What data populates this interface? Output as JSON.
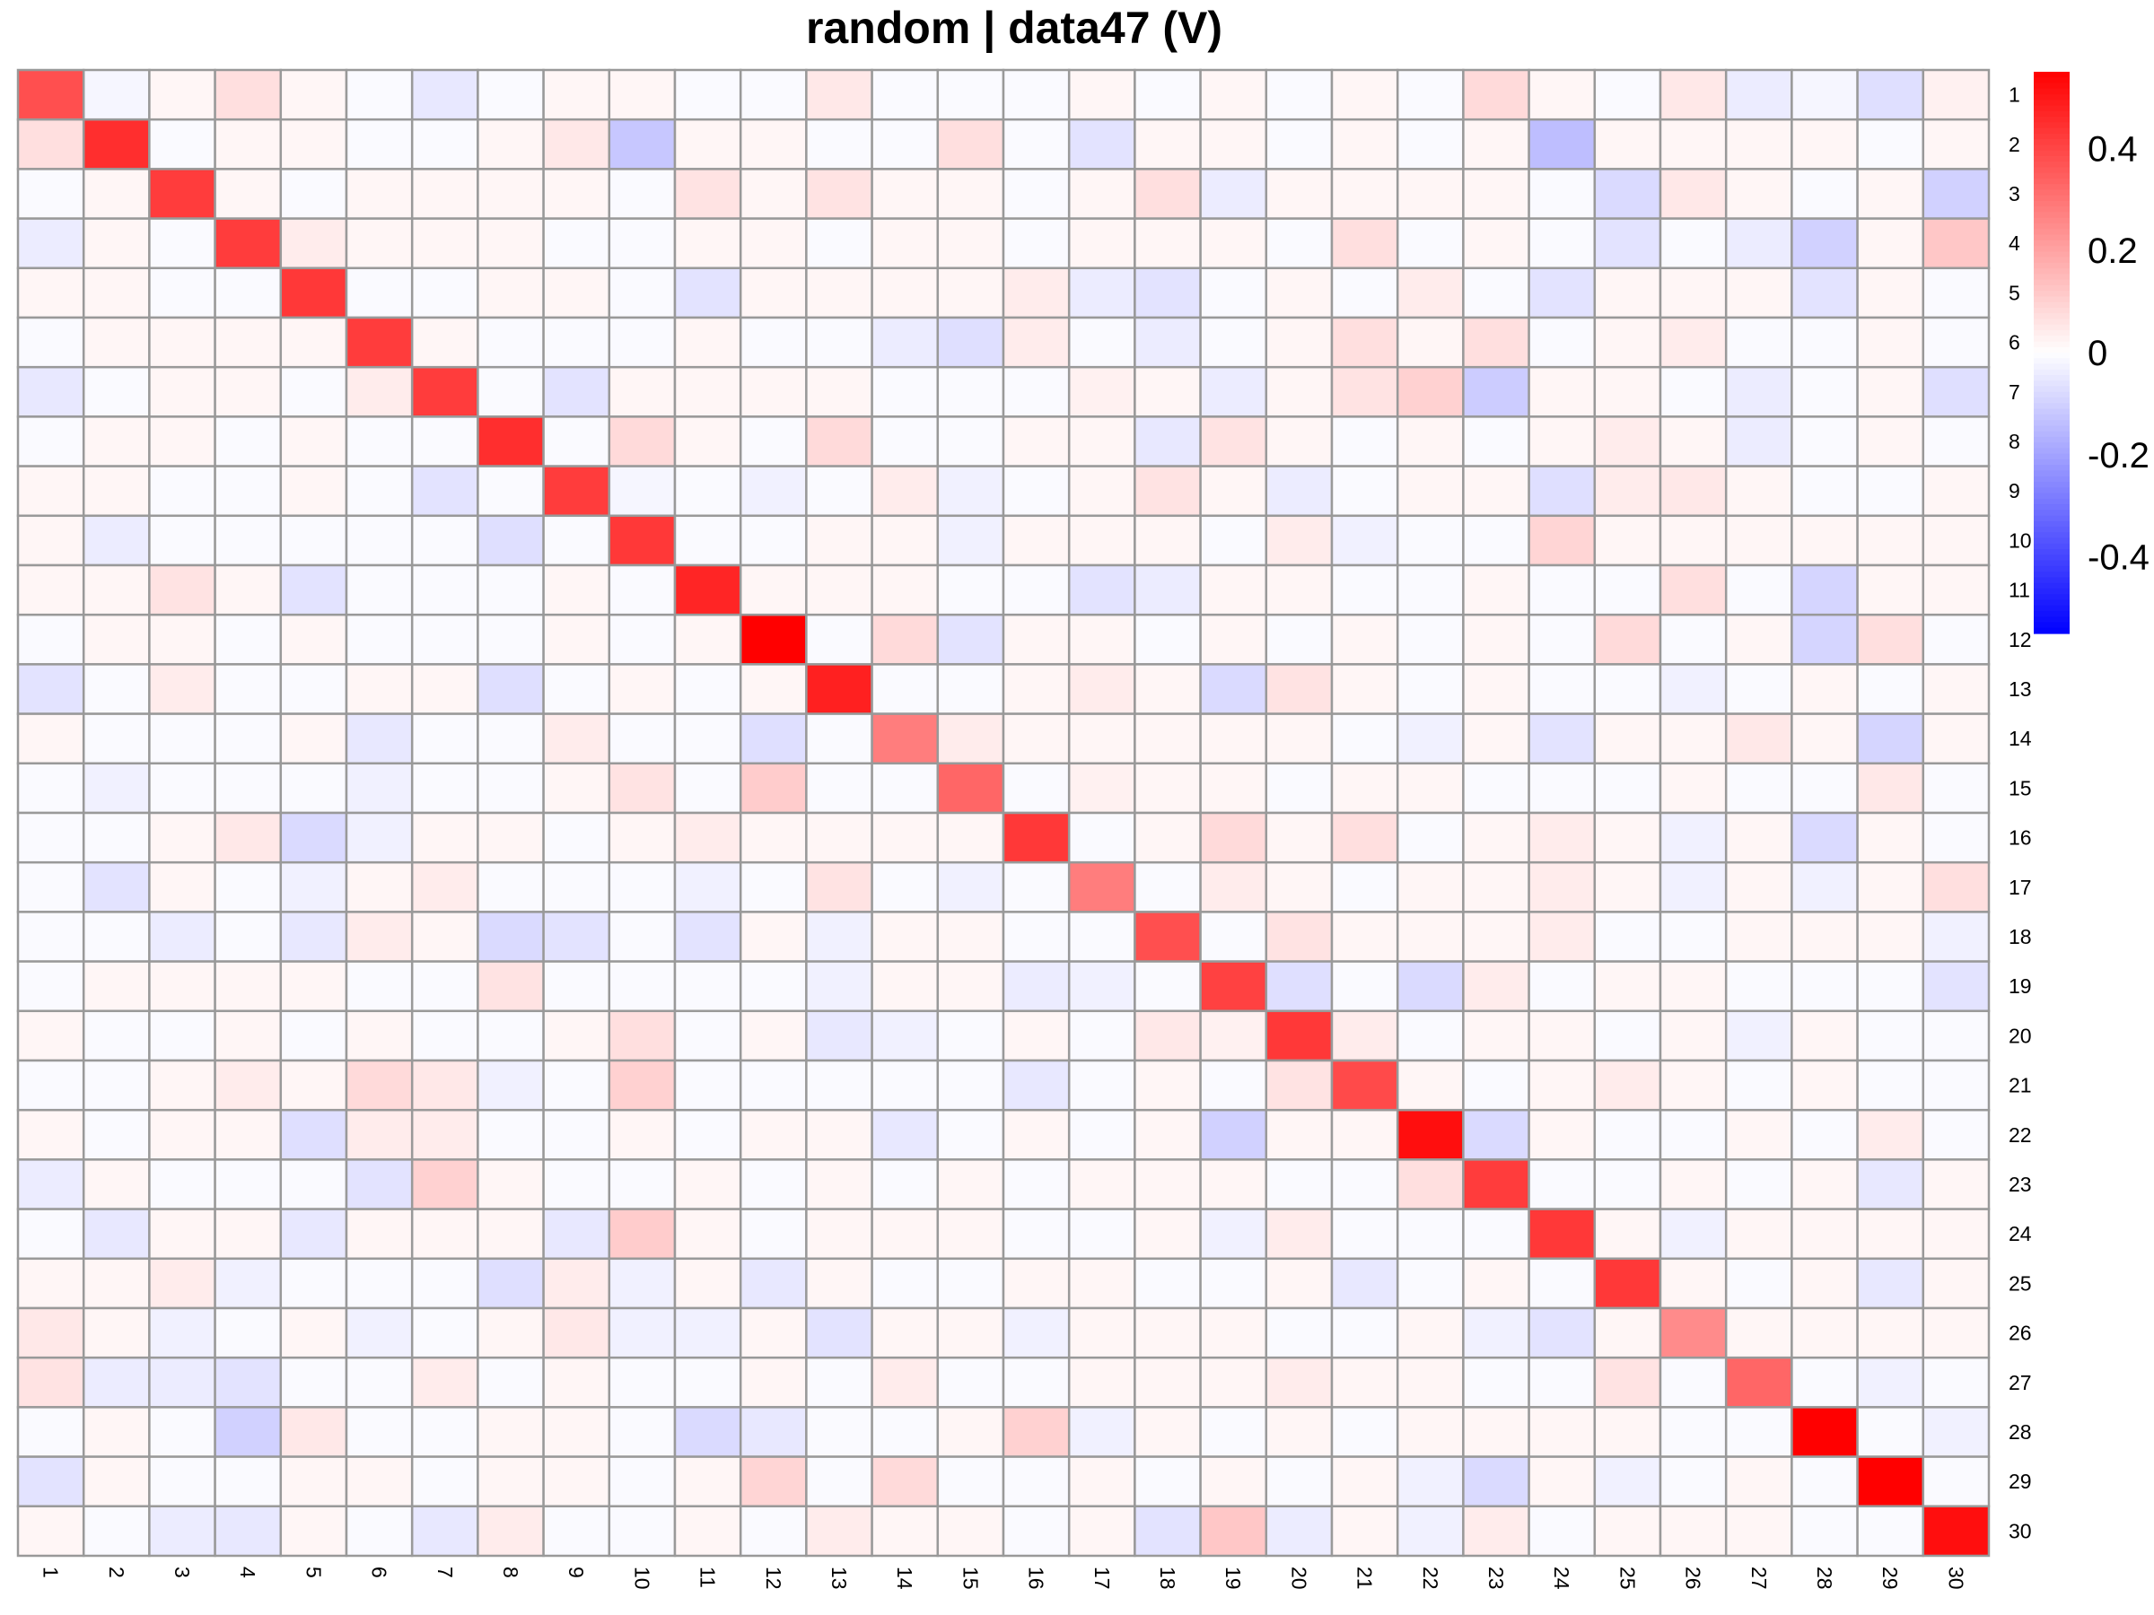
{
  "chart_data": {
    "type": "heatmap",
    "title": "random | data47 (V)",
    "row_labels": [
      "1",
      "2",
      "3",
      "4",
      "5",
      "6",
      "7",
      "8",
      "9",
      "10",
      "11",
      "12",
      "13",
      "14",
      "15",
      "16",
      "17",
      "18",
      "19",
      "20",
      "21",
      "22",
      "23",
      "24",
      "25",
      "26",
      "27",
      "28",
      "29",
      "30"
    ],
    "col_labels": [
      "1",
      "2",
      "3",
      "4",
      "5",
      "6",
      "7",
      "8",
      "9",
      "10",
      "11",
      "12",
      "13",
      "14",
      "15",
      "16",
      "17",
      "18",
      "19",
      "20",
      "21",
      "22",
      "23",
      "24",
      "25",
      "26",
      "27",
      "28",
      "29",
      "30"
    ],
    "color_scale": {
      "min": -0.55,
      "max": 0.55,
      "low_color": "#0000ff",
      "mid_color": "#ffffff",
      "high_color": "#ff0000",
      "ticks": [
        0.4,
        0.2,
        0,
        -0.2,
        -0.4
      ],
      "tick_labels": [
        "0.4",
        "0.2",
        "0",
        "-0.2",
        "-0.4"
      ]
    },
    "grid_color": "#999999",
    "values": [
      [
        0.38,
        -0.02,
        0.02,
        0.07,
        0.02,
        -0.01,
        -0.05,
        -0.01,
        0.02,
        0.02,
        -0.01,
        -0.01,
        0.05,
        -0.01,
        -0.01,
        -0.01,
        0.02,
        -0.01,
        0.02,
        -0.01,
        0.02,
        -0.01,
        0.08,
        0.02,
        -0.01,
        0.05,
        -0.04,
        -0.02,
        -0.07,
        0.03
      ],
      [
        0.07,
        0.45,
        -0.01,
        0.02,
        0.02,
        -0.01,
        -0.01,
        0.02,
        0.05,
        -0.12,
        0.02,
        0.02,
        -0.01,
        -0.01,
        0.07,
        -0.01,
        -0.06,
        0.02,
        0.02,
        -0.01,
        0.02,
        -0.01,
        0.02,
        -0.14,
        0.02,
        0.02,
        0.02,
        0.02,
        -0.01,
        0.02
      ],
      [
        -0.01,
        0.02,
        0.42,
        0.02,
        -0.01,
        0.02,
        0.02,
        0.02,
        0.02,
        -0.01,
        0.06,
        0.02,
        0.06,
        0.02,
        0.02,
        -0.01,
        0.02,
        0.07,
        -0.04,
        0.02,
        0.02,
        0.02,
        0.02,
        -0.01,
        -0.08,
        0.05,
        0.02,
        -0.01,
        0.02,
        -0.1
      ],
      [
        -0.04,
        0.02,
        -0.01,
        0.42,
        0.04,
        0.02,
        0.02,
        0.02,
        -0.01,
        -0.01,
        0.02,
        0.02,
        -0.01,
        0.02,
        0.02,
        -0.01,
        0.02,
        0.02,
        0.02,
        -0.01,
        0.07,
        -0.01,
        0.02,
        -0.01,
        -0.06,
        -0.01,
        -0.04,
        -0.1,
        0.02,
        0.12
      ],
      [
        0.02,
        0.02,
        -0.01,
        -0.01,
        0.43,
        -0.01,
        -0.01,
        0.02,
        0.02,
        -0.01,
        -0.06,
        0.02,
        0.02,
        0.02,
        0.02,
        0.04,
        -0.04,
        -0.06,
        -0.01,
        0.02,
        -0.01,
        0.04,
        -0.01,
        -0.06,
        0.02,
        0.02,
        0.02,
        -0.06,
        0.02,
        -0.01
      ],
      [
        -0.01,
        0.02,
        0.02,
        0.02,
        0.02,
        0.42,
        0.02,
        -0.01,
        -0.01,
        -0.01,
        0.02,
        -0.01,
        -0.01,
        -0.04,
        -0.07,
        0.04,
        -0.01,
        -0.04,
        -0.01,
        0.02,
        0.07,
        0.02,
        0.07,
        -0.01,
        0.02,
        0.04,
        -0.01,
        -0.01,
        0.02,
        -0.01
      ],
      [
        -0.05,
        -0.01,
        0.02,
        0.02,
        -0.01,
        0.04,
        0.42,
        -0.01,
        -0.06,
        0.02,
        0.02,
        0.02,
        0.02,
        -0.01,
        -0.01,
        -0.01,
        0.03,
        0.02,
        -0.04,
        0.02,
        0.06,
        0.1,
        -0.11,
        0.02,
        0.02,
        -0.01,
        -0.04,
        -0.01,
        0.02,
        -0.07
      ],
      [
        -0.01,
        0.02,
        0.02,
        -0.01,
        0.02,
        -0.01,
        -0.01,
        0.45,
        -0.01,
        0.08,
        0.02,
        -0.01,
        0.08,
        -0.01,
        -0.01,
        0.02,
        0.02,
        -0.05,
        0.06,
        0.02,
        -0.01,
        0.02,
        -0.01,
        0.02,
        0.04,
        0.02,
        -0.04,
        -0.01,
        0.02,
        -0.01
      ],
      [
        0.02,
        0.02,
        -0.01,
        -0.01,
        0.02,
        -0.01,
        -0.06,
        -0.01,
        0.42,
        -0.02,
        -0.01,
        -0.03,
        -0.01,
        0.04,
        -0.03,
        -0.01,
        0.02,
        0.06,
        0.02,
        -0.04,
        -0.01,
        0.02,
        0.02,
        -0.07,
        0.04,
        0.05,
        0.02,
        -0.01,
        -0.01,
        0.02
      ],
      [
        0.02,
        -0.04,
        -0.01,
        -0.01,
        -0.01,
        -0.01,
        -0.01,
        -0.07,
        -0.01,
        0.43,
        -0.01,
        -0.01,
        0.02,
        0.02,
        -0.03,
        0.02,
        0.02,
        0.02,
        -0.01,
        0.04,
        -0.03,
        -0.01,
        -0.01,
        0.09,
        0.02,
        0.02,
        0.02,
        0.02,
        0.02,
        0.02
      ],
      [
        0.02,
        0.02,
        0.06,
        0.02,
        -0.06,
        -0.01,
        -0.01,
        -0.01,
        0.02,
        -0.01,
        0.47,
        0.02,
        0.02,
        0.02,
        -0.01,
        -0.01,
        -0.06,
        -0.04,
        0.02,
        0.02,
        -0.01,
        -0.01,
        0.02,
        -0.01,
        -0.01,
        0.07,
        -0.01,
        -0.09,
        0.02,
        0.02
      ],
      [
        -0.01,
        0.02,
        0.02,
        -0.01,
        0.02,
        -0.01,
        -0.01,
        -0.01,
        0.02,
        -0.01,
        0.02,
        0.55,
        -0.01,
        0.08,
        -0.06,
        0.02,
        0.02,
        -0.01,
        0.02,
        -0.01,
        0.02,
        -0.01,
        0.02,
        -0.01,
        0.08,
        -0.01,
        0.02,
        -0.09,
        0.07,
        -0.01
      ],
      [
        -0.06,
        -0.01,
        0.04,
        -0.01,
        -0.01,
        0.02,
        0.02,
        -0.07,
        -0.01,
        0.02,
        -0.01,
        0.02,
        0.48,
        -0.01,
        -0.01,
        0.02,
        0.04,
        0.02,
        -0.08,
        0.06,
        0.02,
        -0.01,
        0.02,
        -0.01,
        -0.01,
        -0.03,
        -0.01,
        0.02,
        -0.01,
        0.02
      ],
      [
        0.02,
        -0.01,
        -0.01,
        -0.01,
        0.02,
        -0.05,
        -0.01,
        -0.01,
        0.04,
        -0.01,
        -0.01,
        -0.07,
        -0.01,
        0.28,
        0.04,
        0.02,
        0.02,
        0.02,
        0.02,
        0.02,
        -0.01,
        -0.03,
        0.02,
        -0.06,
        0.02,
        0.02,
        0.05,
        0.02,
        -0.09,
        0.02
      ],
      [
        -0.01,
        -0.03,
        -0.01,
        -0.01,
        -0.01,
        -0.03,
        -0.01,
        -0.01,
        0.02,
        0.06,
        -0.01,
        0.11,
        -0.01,
        -0.01,
        0.33,
        -0.01,
        0.03,
        0.02,
        0.02,
        -0.01,
        0.02,
        0.02,
        -0.01,
        -0.01,
        -0.01,
        0.02,
        -0.01,
        -0.01,
        0.05,
        -0.01
      ],
      [
        -0.01,
        -0.01,
        0.02,
        0.05,
        -0.08,
        -0.03,
        0.02,
        0.02,
        -0.01,
        0.02,
        0.04,
        0.02,
        0.02,
        0.02,
        0.02,
        0.43,
        -0.01,
        0.02,
        0.08,
        0.02,
        0.07,
        -0.01,
        0.02,
        0.04,
        0.02,
        -0.03,
        0.02,
        -0.08,
        0.02,
        -0.01
      ],
      [
        -0.01,
        -0.06,
        0.02,
        -0.01,
        -0.03,
        0.02,
        0.04,
        -0.01,
        -0.01,
        -0.01,
        -0.03,
        -0.01,
        0.06,
        -0.01,
        -0.03,
        -0.01,
        0.28,
        -0.01,
        0.04,
        0.02,
        -0.01,
        0.02,
        0.02,
        0.04,
        0.02,
        -0.03,
        0.02,
        -0.03,
        0.02,
        0.07
      ],
      [
        -0.01,
        -0.01,
        -0.04,
        -0.01,
        -0.05,
        0.04,
        0.02,
        -0.08,
        -0.06,
        -0.01,
        -0.06,
        0.02,
        -0.03,
        0.02,
        0.02,
        -0.01,
        -0.01,
        0.38,
        -0.01,
        0.06,
        0.02,
        0.02,
        0.02,
        0.04,
        -0.01,
        -0.01,
        0.02,
        0.02,
        0.02,
        -0.03
      ],
      [
        -0.01,
        0.02,
        0.02,
        0.02,
        0.02,
        -0.01,
        -0.01,
        0.06,
        -0.01,
        -0.01,
        -0.01,
        -0.01,
        -0.03,
        0.02,
        0.02,
        -0.04,
        -0.03,
        -0.01,
        0.41,
        -0.07,
        -0.01,
        -0.08,
        0.04,
        -0.01,
        0.02,
        0.02,
        -0.01,
        -0.01,
        -0.01,
        -0.06
      ],
      [
        0.02,
        -0.01,
        -0.01,
        0.02,
        -0.01,
        0.02,
        -0.01,
        -0.01,
        0.02,
        0.07,
        -0.01,
        0.02,
        -0.05,
        -0.03,
        -0.01,
        0.02,
        -0.01,
        0.05,
        0.03,
        0.43,
        0.04,
        -0.01,
        0.02,
        0.02,
        -0.01,
        0.02,
        -0.03,
        0.02,
        -0.01,
        -0.01
      ],
      [
        -0.01,
        -0.01,
        0.02,
        0.04,
        0.02,
        0.08,
        0.05,
        -0.03,
        -0.01,
        0.1,
        -0.01,
        -0.01,
        -0.01,
        -0.01,
        -0.01,
        -0.05,
        -0.01,
        0.02,
        -0.01,
        0.06,
        0.39,
        0.02,
        -0.01,
        0.02,
        0.04,
        0.02,
        -0.01,
        0.02,
        -0.01,
        -0.01
      ],
      [
        0.02,
        -0.01,
        0.02,
        0.02,
        -0.07,
        0.04,
        0.04,
        -0.01,
        -0.01,
        0.02,
        -0.01,
        0.02,
        0.02,
        -0.05,
        -0.01,
        0.02,
        -0.01,
        0.02,
        -0.1,
        0.02,
        0.02,
        0.52,
        -0.08,
        0.02,
        -0.01,
        -0.01,
        0.02,
        -0.01,
        0.04,
        -0.01
      ],
      [
        -0.04,
        0.02,
        -0.01,
        -0.01,
        -0.01,
        -0.06,
        0.1,
        0.02,
        -0.01,
        -0.01,
        0.02,
        -0.01,
        0.02,
        -0.01,
        0.02,
        -0.01,
        0.02,
        0.02,
        0.02,
        -0.01,
        -0.01,
        0.07,
        0.42,
        -0.01,
        -0.01,
        0.02,
        -0.01,
        0.02,
        -0.05,
        0.02
      ],
      [
        -0.01,
        -0.05,
        0.02,
        0.02,
        -0.05,
        0.02,
        0.02,
        0.02,
        -0.05,
        0.11,
        0.02,
        -0.01,
        0.02,
        0.02,
        0.02,
        -0.01,
        -0.01,
        0.02,
        -0.03,
        0.04,
        -0.01,
        -0.01,
        -0.01,
        0.43,
        0.02,
        -0.03,
        0.02,
        0.02,
        0.02,
        0.02
      ],
      [
        0.02,
        0.02,
        0.04,
        -0.03,
        -0.01,
        -0.01,
        -0.01,
        -0.07,
        0.04,
        -0.03,
        0.02,
        -0.05,
        0.02,
        -0.01,
        -0.01,
        0.02,
        0.02,
        -0.01,
        -0.01,
        0.02,
        -0.05,
        -0.01,
        0.02,
        -0.01,
        0.43,
        0.02,
        -0.01,
        0.02,
        -0.05,
        0.02
      ],
      [
        0.05,
        0.02,
        -0.03,
        -0.01,
        0.02,
        -0.03,
        -0.01,
        0.02,
        0.05,
        -0.03,
        -0.03,
        0.02,
        -0.06,
        0.02,
        0.02,
        -0.03,
        0.02,
        0.02,
        0.02,
        -0.01,
        -0.01,
        0.02,
        -0.03,
        -0.06,
        0.02,
        0.25,
        0.02,
        0.02,
        0.02,
        0.02
      ],
      [
        0.06,
        -0.04,
        -0.04,
        -0.06,
        -0.01,
        -0.01,
        0.04,
        -0.01,
        0.02,
        -0.01,
        -0.01,
        0.02,
        -0.01,
        0.04,
        -0.01,
        -0.01,
        0.02,
        0.02,
        0.02,
        0.04,
        0.02,
        0.02,
        -0.01,
        -0.01,
        0.06,
        -0.01,
        0.33,
        -0.01,
        -0.03,
        -0.01
      ],
      [
        -0.01,
        0.02,
        -0.01,
        -0.1,
        0.05,
        -0.01,
        -0.01,
        0.02,
        0.02,
        -0.01,
        -0.08,
        -0.05,
        -0.01,
        -0.01,
        0.02,
        0.1,
        -0.03,
        0.02,
        -0.01,
        0.02,
        -0.01,
        0.02,
        0.02,
        0.02,
        0.02,
        -0.01,
        -0.01,
        0.55,
        -0.01,
        -0.03
      ],
      [
        -0.06,
        0.02,
        -0.01,
        -0.01,
        0.02,
        0.02,
        -0.01,
        0.02,
        0.02,
        -0.01,
        0.02,
        0.09,
        -0.01,
        0.08,
        -0.01,
        -0.01,
        0.02,
        -0.01,
        0.02,
        -0.01,
        0.02,
        -0.03,
        -0.08,
        0.02,
        -0.03,
        -0.01,
        0.02,
        -0.01,
        0.55,
        -0.01
      ],
      [
        0.02,
        -0.01,
        -0.04,
        -0.05,
        0.02,
        -0.01,
        -0.05,
        0.04,
        -0.01,
        -0.01,
        0.02,
        -0.01,
        0.04,
        0.02,
        0.02,
        -0.01,
        0.02,
        -0.06,
        0.12,
        -0.04,
        0.02,
        -0.03,
        0.04,
        -0.01,
        0.02,
        0.02,
        0.02,
        -0.01,
        -0.01,
        0.52
      ]
    ]
  }
}
